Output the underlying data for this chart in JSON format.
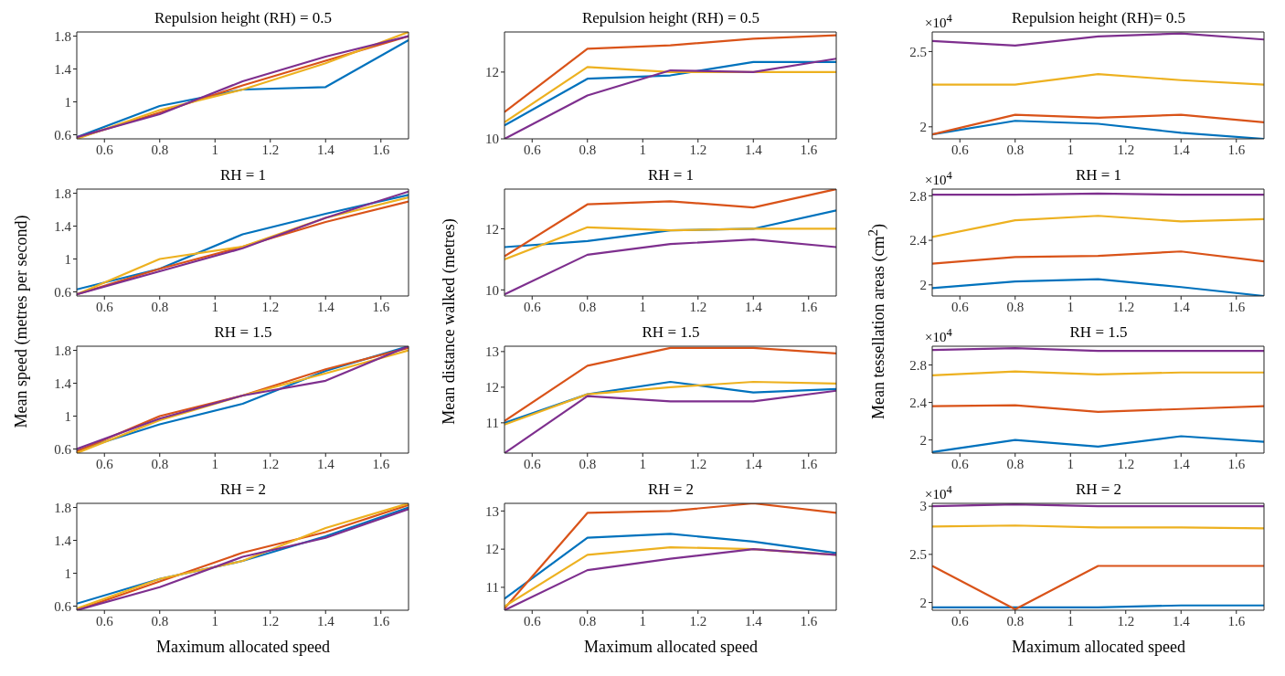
{
  "chart_data": [
    {
      "type": "line",
      "title": "Repulsion height (RH) = 0.5",
      "ylabel": "Mean speed (metres per second)",
      "x": [
        0.5,
        0.8,
        1.1,
        1.4,
        1.7
      ],
      "xlim": [
        0.5,
        1.7
      ],
      "xticks": [
        0.6,
        0.8,
        1,
        1.2,
        1.4,
        1.6
      ],
      "ylim": [
        0.55,
        1.85
      ],
      "yticks": [
        0.6,
        1,
        1.4,
        1.8
      ],
      "line_style": "solid",
      "series": [
        {
          "color": "#0072bd",
          "values": [
            0.57,
            0.95,
            1.15,
            1.18,
            1.75
          ]
        },
        {
          "color": "#d95319",
          "values": [
            0.56,
            0.87,
            1.2,
            1.5,
            1.8
          ]
        },
        {
          "color": "#edb120",
          "values": [
            0.55,
            0.9,
            1.15,
            1.47,
            1.85
          ]
        },
        {
          "color": "#7e2f8e",
          "values": [
            0.57,
            0.85,
            1.25,
            1.55,
            1.8
          ]
        }
      ]
    },
    {
      "type": "line",
      "title": "Repulsion height (RH) = 0.5",
      "ylabel": "Mean distance walked (metres)",
      "x": [
        0.5,
        0.8,
        1.1,
        1.4,
        1.7
      ],
      "xlim": [
        0.5,
        1.7
      ],
      "xticks": [
        0.6,
        0.8,
        1,
        1.2,
        1.4,
        1.6
      ],
      "ylim": [
        10,
        13.2
      ],
      "yticks": [
        10,
        12
      ],
      "line_style": "solid",
      "series": [
        {
          "color": "#0072bd",
          "values": [
            10.4,
            11.8,
            11.9,
            12.3,
            12.3
          ]
        },
        {
          "color": "#d95319",
          "values": [
            10.8,
            12.7,
            12.8,
            13.0,
            13.1
          ]
        },
        {
          "color": "#edb120",
          "values": [
            10.5,
            12.15,
            12.0,
            12.0,
            12.0
          ]
        },
        {
          "color": "#7e2f8e",
          "values": [
            10.0,
            11.3,
            12.05,
            12.0,
            12.4
          ]
        }
      ]
    },
    {
      "type": "line",
      "title": "Repulsion height (RH)= 0.5",
      "ylabel": "Mean tessellation areas (cm$^{2}$)",
      "annotations": [
        "×10$^{4}$"
      ],
      "x": [
        0.5,
        0.8,
        1.1,
        1.4,
        1.7
      ],
      "xlim": [
        0.5,
        1.7
      ],
      "xticks": [
        0.6,
        0.8,
        1,
        1.2,
        1.4,
        1.6
      ],
      "ylim": [
        1.92,
        2.63
      ],
      "yticks": [
        2,
        2.5
      ],
      "line_style": "solid",
      "series": [
        {
          "color": "#0072bd",
          "values": [
            1.95,
            2.04,
            2.02,
            1.96,
            1.92
          ]
        },
        {
          "color": "#d95319",
          "values": [
            1.95,
            2.08,
            2.06,
            2.08,
            2.03
          ]
        },
        {
          "color": "#edb120",
          "values": [
            2.28,
            2.28,
            2.35,
            2.31,
            2.28
          ]
        },
        {
          "color": "#7e2f8e",
          "values": [
            2.57,
            2.54,
            2.6,
            2.62,
            2.58
          ]
        }
      ]
    },
    {
      "type": "line",
      "title": "RH = 1",
      "x": [
        0.5,
        0.8,
        1.1,
        1.4,
        1.7
      ],
      "xlim": [
        0.5,
        1.7
      ],
      "xticks": [
        0.6,
        0.8,
        1,
        1.2,
        1.4,
        1.6
      ],
      "ylim": [
        0.55,
        1.85
      ],
      "yticks": [
        0.6,
        1,
        1.4,
        1.8
      ],
      "line_style": "solid",
      "series": [
        {
          "color": "#0072bd",
          "values": [
            0.63,
            0.88,
            1.3,
            1.55,
            1.78
          ]
        },
        {
          "color": "#d95319",
          "values": [
            0.57,
            0.88,
            1.15,
            1.45,
            1.7
          ]
        },
        {
          "color": "#edb120",
          "values": [
            0.57,
            1.0,
            1.15,
            1.5,
            1.75
          ]
        },
        {
          "color": "#7e2f8e",
          "values": [
            0.57,
            0.85,
            1.13,
            1.5,
            1.82
          ]
        }
      ]
    },
    {
      "type": "line",
      "title": "RH = 1",
      "x": [
        0.5,
        0.8,
        1.1,
        1.4,
        1.7
      ],
      "xlim": [
        0.5,
        1.7
      ],
      "xticks": [
        0.6,
        0.8,
        1,
        1.2,
        1.4,
        1.6
      ],
      "ylim": [
        9.8,
        13.3
      ],
      "yticks": [
        10,
        12
      ],
      "line_style": "solid",
      "series": [
        {
          "color": "#0072bd",
          "values": [
            11.4,
            11.6,
            11.95,
            12.0,
            12.6
          ]
        },
        {
          "color": "#d95319",
          "values": [
            11.1,
            12.8,
            12.9,
            12.7,
            13.3
          ]
        },
        {
          "color": "#edb120",
          "values": [
            11.0,
            12.05,
            11.95,
            12.0,
            12.0
          ]
        },
        {
          "color": "#7e2f8e",
          "values": [
            9.85,
            11.15,
            11.5,
            11.65,
            11.4
          ]
        }
      ]
    },
    {
      "type": "line",
      "title": "RH = 1",
      "annotations": [
        "×10$^{4}$"
      ],
      "x": [
        0.5,
        0.8,
        1.1,
        1.4,
        1.7
      ],
      "xlim": [
        0.5,
        1.7
      ],
      "xticks": [
        0.6,
        0.8,
        1,
        1.2,
        1.4,
        1.6
      ],
      "ylim": [
        1.9,
        2.86
      ],
      "yticks": [
        2,
        2.4,
        2.8
      ],
      "line_style": "solid",
      "series": [
        {
          "color": "#0072bd",
          "values": [
            1.97,
            2.03,
            2.05,
            1.98,
            1.9
          ]
        },
        {
          "color": "#d95319",
          "values": [
            2.19,
            2.25,
            2.26,
            2.3,
            2.21
          ]
        },
        {
          "color": "#edb120",
          "values": [
            2.43,
            2.58,
            2.62,
            2.57,
            2.59
          ]
        },
        {
          "color": "#7e2f8e",
          "values": [
            2.81,
            2.81,
            2.82,
            2.81,
            2.81
          ]
        }
      ]
    },
    {
      "type": "line",
      "title": "RH = 1.5",
      "x": [
        0.5,
        0.8,
        1.1,
        1.4,
        1.7
      ],
      "xlim": [
        0.5,
        1.7
      ],
      "xticks": [
        0.6,
        0.8,
        1,
        1.2,
        1.4,
        1.6
      ],
      "ylim": [
        0.55,
        1.85
      ],
      "yticks": [
        0.6,
        1,
        1.4,
        1.8
      ],
      "line_style": "solid",
      "series": [
        {
          "color": "#0072bd",
          "values": [
            0.58,
            0.9,
            1.15,
            1.55,
            1.85
          ]
        },
        {
          "color": "#d95319",
          "values": [
            0.57,
            1.0,
            1.25,
            1.57,
            1.83
          ]
        },
        {
          "color": "#edb120",
          "values": [
            0.55,
            0.95,
            1.25,
            1.52,
            1.8
          ]
        },
        {
          "color": "#7e2f8e",
          "values": [
            0.6,
            0.97,
            1.25,
            1.43,
            1.85
          ]
        }
      ]
    },
    {
      "type": "line",
      "title": "RH = 1.5",
      "x": [
        0.5,
        0.8,
        1.1,
        1.4,
        1.7
      ],
      "xlim": [
        0.5,
        1.7
      ],
      "xticks": [
        0.6,
        0.8,
        1,
        1.2,
        1.4,
        1.6
      ],
      "ylim": [
        10.15,
        13.15
      ],
      "yticks": [
        11,
        12,
        13
      ],
      "line_style": "solid",
      "series": [
        {
          "color": "#0072bd",
          "values": [
            11.0,
            11.8,
            12.15,
            11.85,
            11.95
          ]
        },
        {
          "color": "#d95319",
          "values": [
            11.05,
            12.6,
            13.1,
            13.1,
            12.95
          ]
        },
        {
          "color": "#edb120",
          "values": [
            10.95,
            11.8,
            12.0,
            12.15,
            12.1
          ]
        },
        {
          "color": "#7e2f8e",
          "values": [
            10.15,
            11.75,
            11.6,
            11.6,
            11.9
          ]
        }
      ]
    },
    {
      "type": "line",
      "title": "RH = 1.5",
      "annotations": [
        "×10$^{4}$"
      ],
      "x": [
        0.5,
        0.8,
        1.1,
        1.4,
        1.7
      ],
      "xlim": [
        0.5,
        1.7
      ],
      "xticks": [
        0.6,
        0.8,
        1,
        1.2,
        1.4,
        1.6
      ],
      "ylim": [
        1.86,
        3.0
      ],
      "yticks": [
        2,
        2.4,
        2.8
      ],
      "line_style": "solid",
      "series": [
        {
          "color": "#0072bd",
          "values": [
            1.87,
            2.0,
            1.93,
            2.04,
            1.98
          ]
        },
        {
          "color": "#d95319",
          "values": [
            2.36,
            2.37,
            2.3,
            2.33,
            2.36
          ]
        },
        {
          "color": "#edb120",
          "values": [
            2.69,
            2.73,
            2.7,
            2.72,
            2.72
          ]
        },
        {
          "color": "#7e2f8e",
          "values": [
            2.96,
            2.98,
            2.95,
            2.95,
            2.95
          ]
        }
      ]
    },
    {
      "type": "line",
      "title": "RH = 2",
      "xlabel": "Maximum allocated speed",
      "x": [
        0.5,
        0.8,
        1.1,
        1.4,
        1.7
      ],
      "xlim": [
        0.5,
        1.7
      ],
      "xticks": [
        0.6,
        0.8,
        1,
        1.2,
        1.4,
        1.6
      ],
      "ylim": [
        0.55,
        1.85
      ],
      "yticks": [
        0.6,
        1,
        1.4,
        1.8
      ],
      "line_style": "solid",
      "series": [
        {
          "color": "#0072bd",
          "values": [
            0.63,
            0.93,
            1.15,
            1.45,
            1.8
          ]
        },
        {
          "color": "#d95319",
          "values": [
            0.55,
            0.9,
            1.25,
            1.5,
            1.83
          ]
        },
        {
          "color": "#edb120",
          "values": [
            0.57,
            0.93,
            1.15,
            1.55,
            1.85
          ]
        },
        {
          "color": "#7e2f8e",
          "values": [
            0.55,
            0.83,
            1.2,
            1.43,
            1.78
          ]
        }
      ]
    },
    {
      "type": "line",
      "title": "RH = 2",
      "xlabel": "Maximum allocated speed",
      "x": [
        0.5,
        0.8,
        1.1,
        1.4,
        1.7
      ],
      "xlim": [
        0.5,
        1.7
      ],
      "xticks": [
        0.6,
        0.8,
        1,
        1.2,
        1.4,
        1.6
      ],
      "ylim": [
        10.4,
        13.2
      ],
      "yticks": [
        11,
        12,
        13
      ],
      "line_style": "solid",
      "series": [
        {
          "color": "#0072bd",
          "values": [
            10.7,
            12.3,
            12.4,
            12.2,
            11.9
          ]
        },
        {
          "color": "#d95319",
          "values": [
            10.45,
            12.95,
            13.0,
            13.2,
            12.95
          ]
        },
        {
          "color": "#edb120",
          "values": [
            10.5,
            11.85,
            12.05,
            12.0,
            11.85
          ]
        },
        {
          "color": "#7e2f8e",
          "values": [
            10.4,
            11.45,
            11.75,
            12.0,
            11.85
          ]
        }
      ]
    },
    {
      "type": "line",
      "title": "RH = 2",
      "xlabel": "Maximum allocated speed",
      "annotations": [
        "×10$^{4}$"
      ],
      "x": [
        0.5,
        0.8,
        1.1,
        1.4,
        1.7
      ],
      "xlim": [
        0.5,
        1.7
      ],
      "xticks": [
        0.6,
        0.8,
        1,
        1.2,
        1.4,
        1.6
      ],
      "ylim": [
        1.92,
        3.03
      ],
      "yticks": [
        2,
        2.5,
        3
      ],
      "line_style": "solid",
      "series": [
        {
          "color": "#0072bd",
          "values": [
            1.95,
            1.95,
            1.95,
            1.97,
            1.97
          ]
        },
        {
          "color": "#d95319",
          "values": [
            2.38,
            1.93,
            2.38,
            2.38,
            2.38
          ]
        },
        {
          "color": "#edb120",
          "values": [
            2.79,
            2.8,
            2.78,
            2.78,
            2.77
          ]
        },
        {
          "color": "#7e2f8e",
          "values": [
            3.0,
            3.02,
            3.0,
            3.0,
            3.0
          ]
        }
      ]
    }
  ]
}
